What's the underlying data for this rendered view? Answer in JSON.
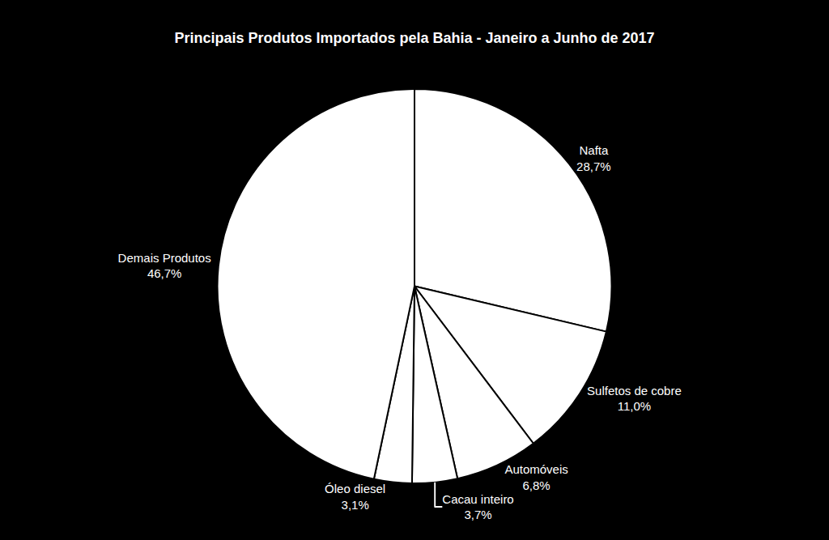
{
  "chart_data": {
    "type": "pie",
    "title": "Principais Produtos Importados pela Bahia - Janeiro a Junho de 2017",
    "categories": [
      "Nafta",
      "Sulfetos de cobre",
      "Automóveis",
      "Cacau inteiro",
      "Óleo diesel",
      "Demais Produtos"
    ],
    "values": [
      28.7,
      11.0,
      6.8,
      3.7,
      3.1,
      46.7
    ],
    "value_labels": [
      "28,7%",
      "11,0%",
      "6,8%",
      "3,7%",
      "3,1%",
      "46,7%"
    ],
    "color": "#ffffff",
    "data_labels": true
  }
}
